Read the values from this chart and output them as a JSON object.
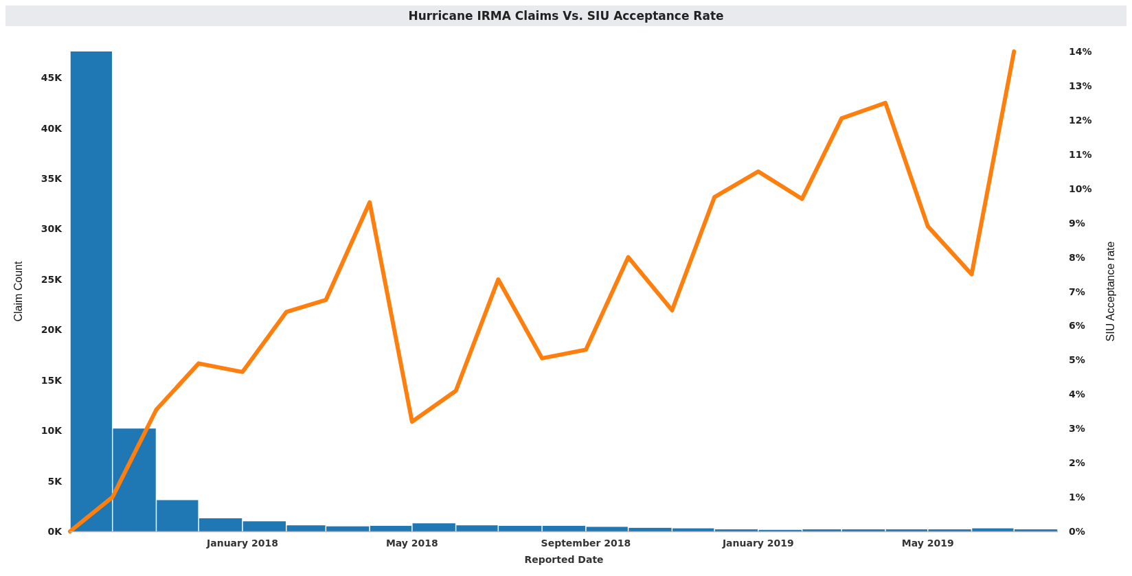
{
  "chart_data": {
    "type": "bar",
    "title": "Hurricane IRMA Claims Vs. SIU Acceptance Rate",
    "xlabel": "Reported Date",
    "ylabel": "Claim Count",
    "y2label": "SIU Acceptance rate",
    "x": [
      "2017-09-16",
      "2017-10-16",
      "2017-11-16",
      "2017-12-16",
      "2018-01-16",
      "2018-02-15",
      "2018-03-16",
      "2018-04-16",
      "2018-05-16",
      "2018-06-16",
      "2018-07-16",
      "2018-08-16",
      "2018-09-16",
      "2018-10-16",
      "2018-11-16",
      "2018-12-16",
      "2019-01-16",
      "2019-02-15",
      "2019-03-16",
      "2019-04-16",
      "2019-05-16",
      "2019-06-16",
      "2019-07-16"
    ],
    "series": [
      {
        "color": "#1f77b4",
        "values": [
          47600,
          10200,
          3100,
          1300,
          1000,
          600,
          500,
          550,
          800,
          600,
          550,
          550,
          450,
          350,
          300,
          200,
          150,
          200,
          200,
          200,
          200,
          300,
          200
        ]
      },
      {
        "type": "line",
        "axis": "y2",
        "color": "#ff7f0e",
        "x": [
          "2017-09",
          "2017-10",
          "2017-11",
          "2017-12",
          "2018-01",
          "2018-02",
          "2018-03",
          "2018-04",
          "2018-05",
          "2018-06",
          "2018-07",
          "2018-08",
          "2018-09",
          "2018-10",
          "2018-11",
          "2018-12",
          "2019-01",
          "2019-02",
          "2019-03",
          "2019-04",
          "2019-05",
          "2019-06",
          "2019-07"
        ],
        "values": [
          0,
          1.0,
          3.55,
          4.9,
          4.65,
          6.4,
          6.75,
          9.6,
          3.2,
          4.1,
          7.35,
          5.05,
          5.3,
          8.0,
          6.45,
          9.75,
          10.5,
          9.7,
          12.05,
          12.5,
          8.9,
          7.5,
          14.0
        ]
      }
    ],
    "xlim": [
      "2017-09",
      "2019-08"
    ],
    "xticks": [
      {
        "value": "2018-01",
        "label": "January 2018"
      },
      {
        "value": "2018-05",
        "label": "May 2018"
      },
      {
        "value": "2018-09",
        "label": "September 2018"
      },
      {
        "value": "2019-01",
        "label": "January 2019"
      },
      {
        "value": "2019-05",
        "label": "May 2019"
      }
    ],
    "ylim": [
      0,
      47600
    ],
    "yticks": [
      {
        "value": 0,
        "label": "0K"
      },
      {
        "value": 5000,
        "label": "5K"
      },
      {
        "value": 10000,
        "label": "10K"
      },
      {
        "value": 15000,
        "label": "15K"
      },
      {
        "value": 20000,
        "label": "20K"
      },
      {
        "value": 25000,
        "label": "25K"
      },
      {
        "value": 30000,
        "label": "30K"
      },
      {
        "value": 35000,
        "label": "35K"
      },
      {
        "value": 40000,
        "label": "40K"
      },
      {
        "value": 45000,
        "label": "45K"
      }
    ],
    "y2lim": [
      0,
      14
    ],
    "y2ticks": [
      {
        "value": 0,
        "label": "0%"
      },
      {
        "value": 1,
        "label": "1%"
      },
      {
        "value": 2,
        "label": "2%"
      },
      {
        "value": 3,
        "label": "3%"
      },
      {
        "value": 4,
        "label": "4%"
      },
      {
        "value": 5,
        "label": "5%"
      },
      {
        "value": 6,
        "label": "6%"
      },
      {
        "value": 7,
        "label": "7%"
      },
      {
        "value": 8,
        "label": "8%"
      },
      {
        "value": 9,
        "label": "9%"
      },
      {
        "value": 10,
        "label": "10%"
      },
      {
        "value": 11,
        "label": "11%"
      },
      {
        "value": 12,
        "label": "12%"
      },
      {
        "value": 13,
        "label": "13%"
      },
      {
        "value": 14,
        "label": "14%"
      }
    ],
    "grid": false
  }
}
